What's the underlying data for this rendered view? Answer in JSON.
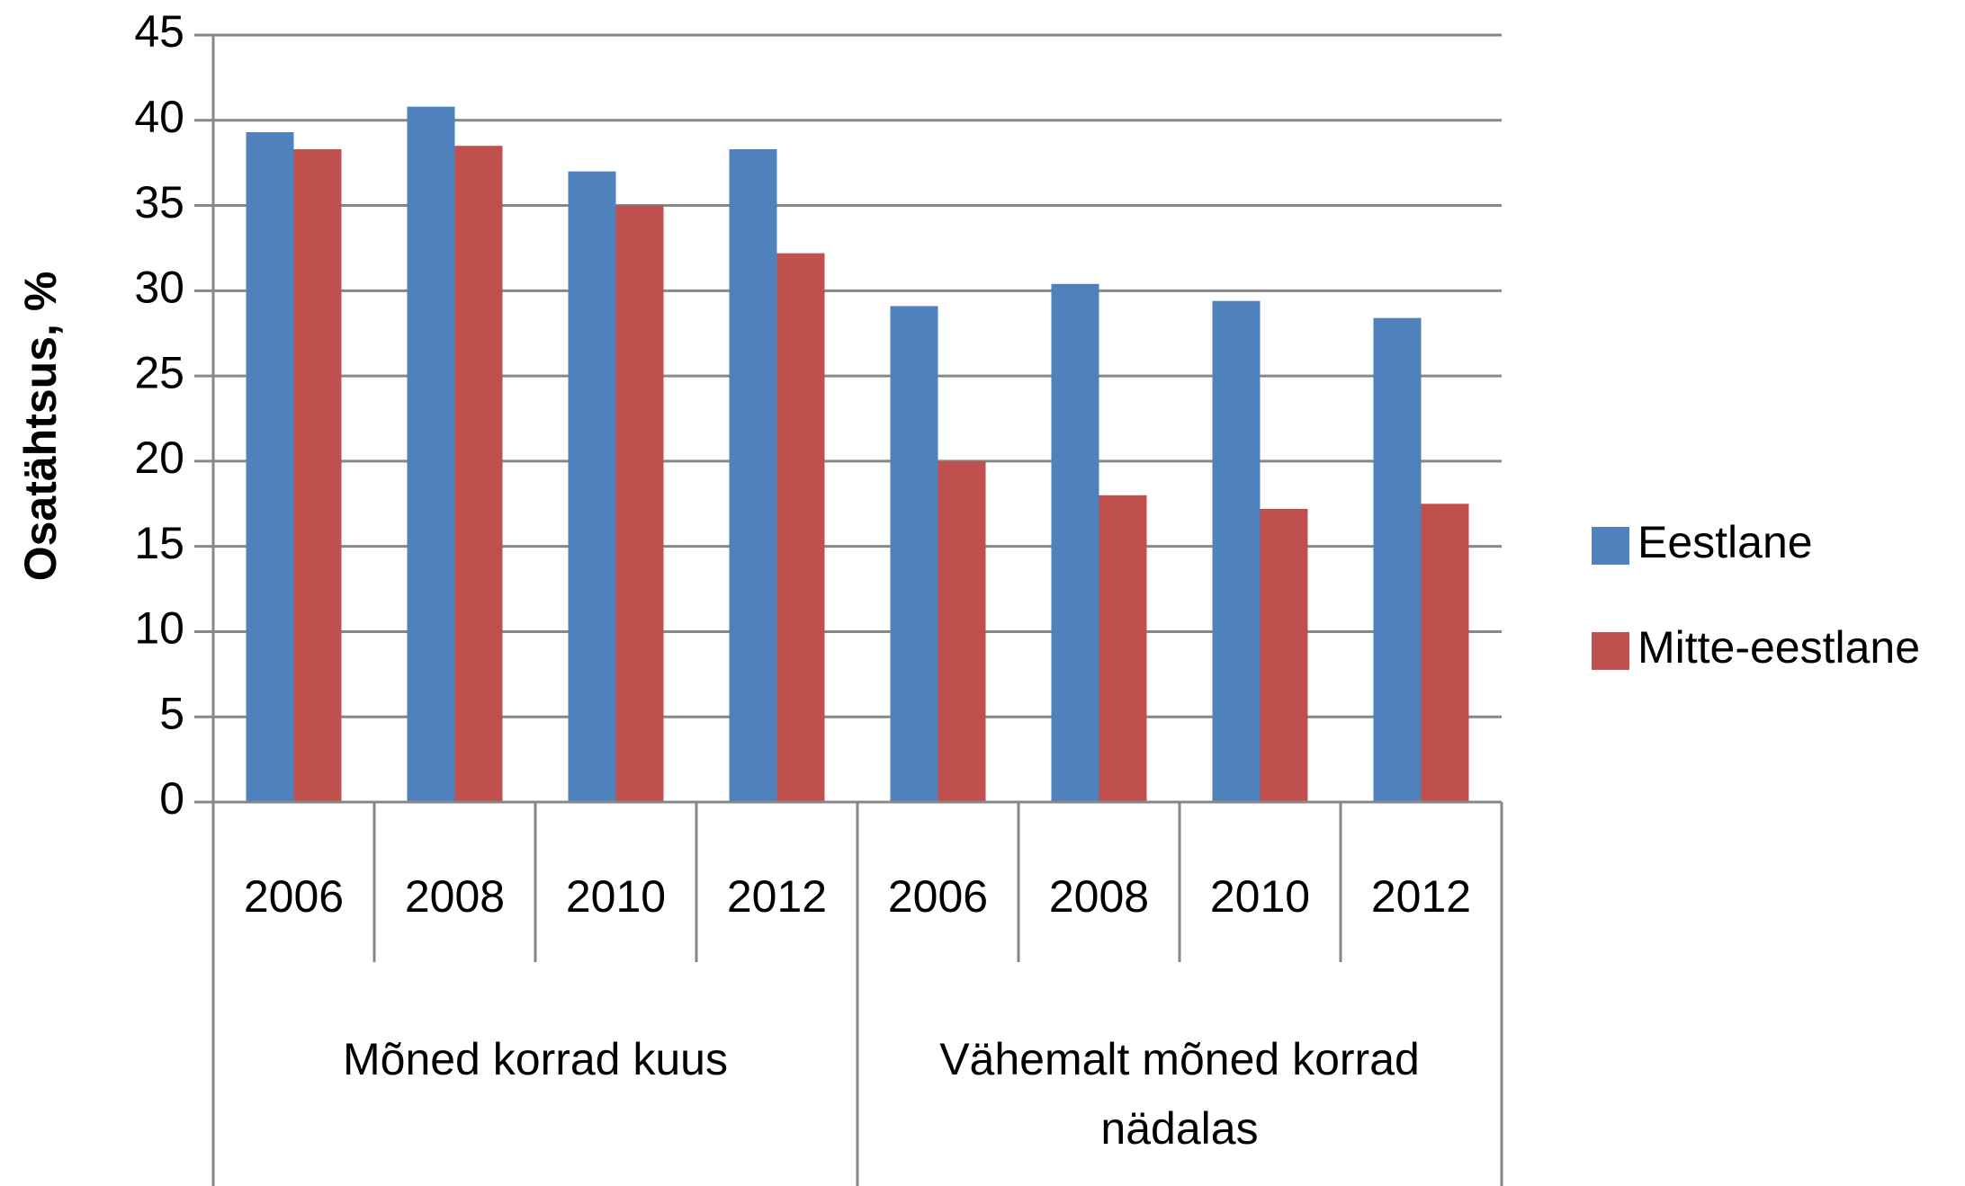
{
  "chart_data": {
    "type": "bar",
    "y_label": "Osatähtsus, %",
    "groups": [
      {
        "label": "Mõned korrad kuus",
        "categories": [
          "2006",
          "2008",
          "2010",
          "2012"
        ]
      },
      {
        "label": "Vähemalt mõned korrad nädalas",
        "categories": [
          "2006",
          "2008",
          "2010",
          "2012"
        ]
      }
    ],
    "series": [
      {
        "name": "Eestlane",
        "color": "#4f81bd",
        "values": [
          39.3,
          40.8,
          37.0,
          38.3,
          29.1,
          30.4,
          29.4,
          28.4
        ]
      },
      {
        "name": "Mitte-eestlane",
        "color": "#c0504d",
        "values": [
          38.3,
          38.5,
          35.0,
          32.2,
          20.0,
          18.0,
          17.2,
          17.5
        ]
      }
    ],
    "ylim": [
      0,
      45
    ],
    "yticks": [
      0,
      5,
      10,
      15,
      20,
      25,
      30,
      35,
      40,
      45
    ],
    "grid": true,
    "legend": "right"
  }
}
